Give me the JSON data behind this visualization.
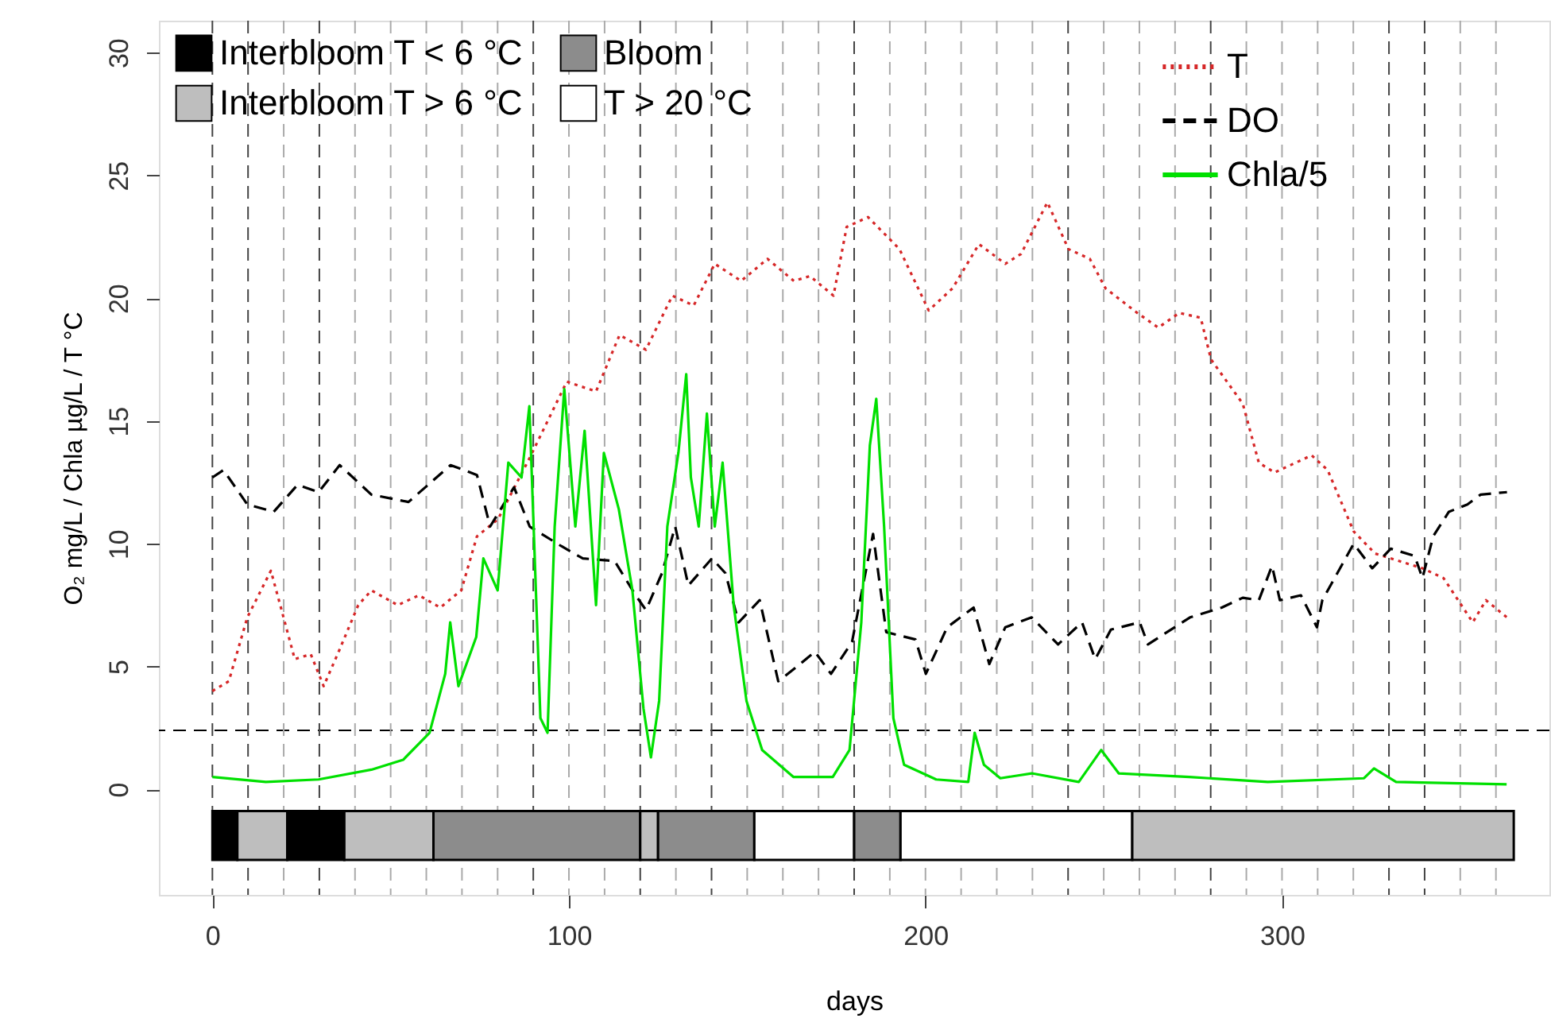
{
  "chart_data": {
    "type": "line",
    "xlabel": "days",
    "ylabel": "O₂ mg/L / Chla  µg/L / T °C",
    "xlim": [
      -15,
      375
    ],
    "ylim": [
      -4.3,
      31.3
    ],
    "xticks": [
      0,
      100,
      200,
      300
    ],
    "yticks": [
      0,
      5,
      10,
      15,
      20,
      25,
      30
    ],
    "grid": false,
    "legend": "top",
    "series": [
      {
        "name": "T",
        "color": "#d62728",
        "line_style": "dotted",
        "x": [
          0,
          4.6,
          9.8,
          16.4,
          19.4,
          23.1,
          27.6,
          31.2,
          35.7,
          40.9,
          44.6,
          52,
          57.9,
          63.9,
          69.8,
          74.2,
          80.1,
          89,
          99.4,
          107.6,
          114.2,
          121.6,
          129,
          135,
          140.9,
          148.3,
          155.7,
          163.1,
          167.6,
          174.2,
          177.9,
          183.9,
          192.7,
          200.9,
          207.6,
          215,
          222.4,
          226.8,
          234.2,
          240.1,
          246.1,
          250.5,
          259.4,
          265.3,
          271.2,
          277.2,
          280.1,
          289,
          293.5,
          297.9,
          308.3,
          312.8,
          320.1,
          326.1,
          339.4,
          345.3,
          353.5,
          357.2,
          363.1
        ],
        "values": [
          4.0,
          4.4,
          7.0,
          8.9,
          7.3,
          5.3,
          5.5,
          4.2,
          5.7,
          7.5,
          8.1,
          7.5,
          7.9,
          7.4,
          8.1,
          10.3,
          11.0,
          13.5,
          16.6,
          16.2,
          18.5,
          17.9,
          20.1,
          19.7,
          21.4,
          20.7,
          21.6,
          20.7,
          20.9,
          20.1,
          22.9,
          23.3,
          22.0,
          19.5,
          20.4,
          22.2,
          21.4,
          21.8,
          23.9,
          22.0,
          21.6,
          20.4,
          19.4,
          18.8,
          19.4,
          19.2,
          17.5,
          15.7,
          13.3,
          12.9,
          13.6,
          13.0,
          10.5,
          9.6,
          9.0,
          8.6,
          6.8,
          7.7,
          7.0
        ]
      },
      {
        "name": "DO",
        "color": "#000000",
        "line_style": "dashed",
        "x": [
          0,
          3.1,
          9.8,
          17.2,
          23.9,
          29.8,
          35.7,
          44.6,
          55,
          66.8,
          74.2,
          77.9,
          84.6,
          89,
          97.9,
          103.9,
          112.8,
          118.7,
          121.6,
          126.1,
          129.8,
          133.5,
          140.1,
          143.9,
          147.6,
          153.5,
          158.7,
          163.1,
          169,
          173.5,
          179.4,
          185.3,
          189,
          197.2,
          200.1,
          206.1,
          213.5,
          217.9,
          222.4,
          229.8,
          237.2,
          243.9,
          247.6,
          252,
          260.1,
          262.4,
          274.2,
          283.1,
          289,
          293.5,
          297.2,
          299.4,
          305.3,
          309.8,
          311.3,
          320.1,
          325.3,
          330.5,
          337.2,
          339.4,
          342.4,
          346.8,
          352,
          355.7,
          363.1
        ],
        "values": [
          12.7,
          13.0,
          11.6,
          11.3,
          12.4,
          12.1,
          13.2,
          12.0,
          11.7,
          13.2,
          12.8,
          10.7,
          12.3,
          10.7,
          9.9,
          9.4,
          9.3,
          7.9,
          7.3,
          8.8,
          10.7,
          8.3,
          9.4,
          8.8,
          6.8,
          7.7,
          4.4,
          4.9,
          5.6,
          4.7,
          6.0,
          10.4,
          6.4,
          6.1,
          4.7,
          6.6,
          7.4,
          5.1,
          6.6,
          7.0,
          5.9,
          6.8,
          5.3,
          6.5,
          6.8,
          5.9,
          7.0,
          7.4,
          7.8,
          7.7,
          9.1,
          7.7,
          7.9,
          6.6,
          7.7,
          10.0,
          9.0,
          9.8,
          9.5,
          8.6,
          10.3,
          11.3,
          11.6,
          12.0,
          12.1
        ]
      },
      {
        "name": "Chla/5",
        "color": "#00e000",
        "line_style": "solid",
        "x": [
          0,
          15,
          29.8,
          44.6,
          53.5,
          60.9,
          65.3,
          66.7,
          69,
          74,
          76,
          80,
          83,
          86.7,
          88.9,
          92,
          94,
          96,
          98.7,
          101.8,
          104.4,
          107.6,
          109.8,
          114,
          117.8,
          120.9,
          123,
          125.3,
          127.6,
          130.7,
          132.9,
          134.2,
          136.4,
          138.7,
          140.9,
          143.1,
          146.2,
          149.8,
          154.2,
          163,
          174,
          178.7,
          182,
          184.4,
          186.2,
          188.4,
          191,
          194,
          203,
          212,
          213.8,
          216.4,
          221,
          229.8,
          243,
          249.3,
          254.2,
          274,
          296,
          323,
          325.8,
          332,
          363
        ],
        "values": [
          0.5,
          0.3,
          0.4,
          0.8,
          1.2,
          2.3,
          4.7,
          6.8,
          4.2,
          6.2,
          9.4,
          8.1,
          13.3,
          12.7,
          15.6,
          2.9,
          2.3,
          10.7,
          16.3,
          10.7,
          14.6,
          7.5,
          13.7,
          11.4,
          8.1,
          3.3,
          1.3,
          3.6,
          10.7,
          13.7,
          16.9,
          12.7,
          10.7,
          15.3,
          10.7,
          13.3,
          7.5,
          3.6,
          1.6,
          0.5,
          0.5,
          1.6,
          6.8,
          14.0,
          15.9,
          10.7,
          2.9,
          1.0,
          0.4,
          0.3,
          2.3,
          1.0,
          0.45,
          0.65,
          0.3,
          1.6,
          0.65,
          0.5,
          0.3,
          0.45,
          0.85,
          0.3,
          0.2
        ]
      }
    ],
    "ref_lines": [
      {
        "axis": "y",
        "value": 2.4,
        "label": null,
        "color": "#000000",
        "line_style": "dashed"
      },
      {
        "axis": "x",
        "value": 0,
        "label": null,
        "color": "#444444",
        "line_style": "dashed"
      },
      {
        "axis": "x",
        "value": 10,
        "label": null,
        "color": "#444444",
        "line_style": "dashed"
      },
      {
        "axis": "x",
        "value": 20,
        "label": null,
        "color": "#aaaaaa",
        "line_style": "dashed"
      },
      {
        "axis": "x",
        "value": 30,
        "label": null,
        "color": "#444444",
        "line_style": "dashed"
      },
      {
        "axis": "x",
        "value": 40,
        "label": null,
        "color": "#aaaaaa",
        "line_style": "dashed"
      },
      {
        "axis": "x",
        "value": 50,
        "label": null,
        "color": "#aaaaaa",
        "line_style": "dashed"
      },
      {
        "axis": "x",
        "value": 60,
        "label": null,
        "color": "#aaaaaa",
        "line_style": "dashed"
      },
      {
        "axis": "x",
        "value": 70,
        "label": null,
        "color": "#aaaaaa",
        "line_style": "dashed"
      },
      {
        "axis": "x",
        "value": 80,
        "label": null,
        "color": "#aaaaaa",
        "line_style": "dashed"
      },
      {
        "axis": "x",
        "value": 90,
        "label": null,
        "color": "#444444",
        "line_style": "dashed"
      },
      {
        "axis": "x",
        "value": 100,
        "label": null,
        "color": "#aaaaaa",
        "line_style": "dashed"
      },
      {
        "axis": "x",
        "value": 110,
        "label": null,
        "color": "#aaaaaa",
        "line_style": "dashed"
      },
      {
        "axis": "x",
        "value": 120,
        "label": null,
        "color": "#444444",
        "line_style": "dashed"
      },
      {
        "axis": "x",
        "value": 130,
        "label": null,
        "color": "#aaaaaa",
        "line_style": "dashed"
      },
      {
        "axis": "x",
        "value": 140,
        "label": null,
        "color": "#444444",
        "line_style": "dashed"
      },
      {
        "axis": "x",
        "value": 150,
        "label": null,
        "color": "#aaaaaa",
        "line_style": "dashed"
      },
      {
        "axis": "x",
        "value": 160,
        "label": null,
        "color": "#aaaaaa",
        "line_style": "dashed"
      },
      {
        "axis": "x",
        "value": 170,
        "label": null,
        "color": "#aaaaaa",
        "line_style": "dashed"
      },
      {
        "axis": "x",
        "value": 180,
        "label": null,
        "color": "#444444",
        "line_style": "dashed"
      },
      {
        "axis": "x",
        "value": 190,
        "label": null,
        "color": "#aaaaaa",
        "line_style": "dashed"
      },
      {
        "axis": "x",
        "value": 200,
        "label": null,
        "color": "#aaaaaa",
        "line_style": "dashed"
      },
      {
        "axis": "x",
        "value": 210,
        "label": null,
        "color": "#aaaaaa",
        "line_style": "dashed"
      },
      {
        "axis": "x",
        "value": 220,
        "label": null,
        "color": "#aaaaaa",
        "line_style": "dashed"
      },
      {
        "axis": "x",
        "value": 230,
        "label": null,
        "color": "#aaaaaa",
        "line_style": "dashed"
      },
      {
        "axis": "x",
        "value": 240,
        "label": null,
        "color": "#444444",
        "line_style": "dashed"
      },
      {
        "axis": "x",
        "value": 250,
        "label": null,
        "color": "#aaaaaa",
        "line_style": "dashed"
      },
      {
        "axis": "x",
        "value": 260,
        "label": null,
        "color": "#aaaaaa",
        "line_style": "dashed"
      },
      {
        "axis": "x",
        "value": 270,
        "label": null,
        "color": "#aaaaaa",
        "line_style": "dashed"
      },
      {
        "axis": "x",
        "value": 280,
        "label": null,
        "color": "#444444",
        "line_style": "dashed"
      },
      {
        "axis": "x",
        "value": 290,
        "label": null,
        "color": "#aaaaaa",
        "line_style": "dashed"
      },
      {
        "axis": "x",
        "value": 300,
        "label": null,
        "color": "#aaaaaa",
        "line_style": "dashed"
      },
      {
        "axis": "x",
        "value": 310,
        "label": null,
        "color": "#aaaaaa",
        "line_style": "dashed"
      },
      {
        "axis": "x",
        "value": 320,
        "label": null,
        "color": "#aaaaaa",
        "line_style": "dashed"
      },
      {
        "axis": "x",
        "value": 330,
        "label": null,
        "color": "#444444",
        "line_style": "dashed"
      },
      {
        "axis": "x",
        "value": 340,
        "label": null,
        "color": "#444444",
        "line_style": "dashed"
      },
      {
        "axis": "x",
        "value": 350,
        "label": null,
        "color": "#aaaaaa",
        "line_style": "dashed"
      },
      {
        "axis": "x",
        "value": 360,
        "label": null,
        "color": "#aaaaaa",
        "line_style": "dashed"
      }
    ],
    "bands": [
      {
        "axis": "x",
        "from": 0,
        "to": 7,
        "label": "Interbloom T < 6 °C",
        "color": "#000000"
      },
      {
        "axis": "x",
        "from": 7,
        "to": 21,
        "label": "Interbloom T > 6 °C",
        "color": "#bebebe"
      },
      {
        "axis": "x",
        "from": 21,
        "to": 37,
        "label": null,
        "color": "#000000"
      },
      {
        "axis": "x",
        "from": 37,
        "to": 62,
        "label": null,
        "color": "#bebebe"
      },
      {
        "axis": "x",
        "from": 62,
        "to": 120,
        "label": "Bloom",
        "color": "#8c8c8c"
      },
      {
        "axis": "x",
        "from": 120,
        "to": 125,
        "label": null,
        "color": "#bebebe"
      },
      {
        "axis": "x",
        "from": 125,
        "to": 152,
        "label": null,
        "color": "#8c8c8c"
      },
      {
        "axis": "x",
        "from": 152,
        "to": 180,
        "label": "T > 20 °C",
        "color": "#ffffff"
      },
      {
        "axis": "x",
        "from": 180,
        "to": 193,
        "label": null,
        "color": "#8c8c8c"
      },
      {
        "axis": "x",
        "from": 193,
        "to": 258,
        "label": null,
        "color": "#ffffff"
      },
      {
        "axis": "x",
        "from": 258,
        "to": 365,
        "label": null,
        "color": "#bebebe"
      }
    ]
  }
}
